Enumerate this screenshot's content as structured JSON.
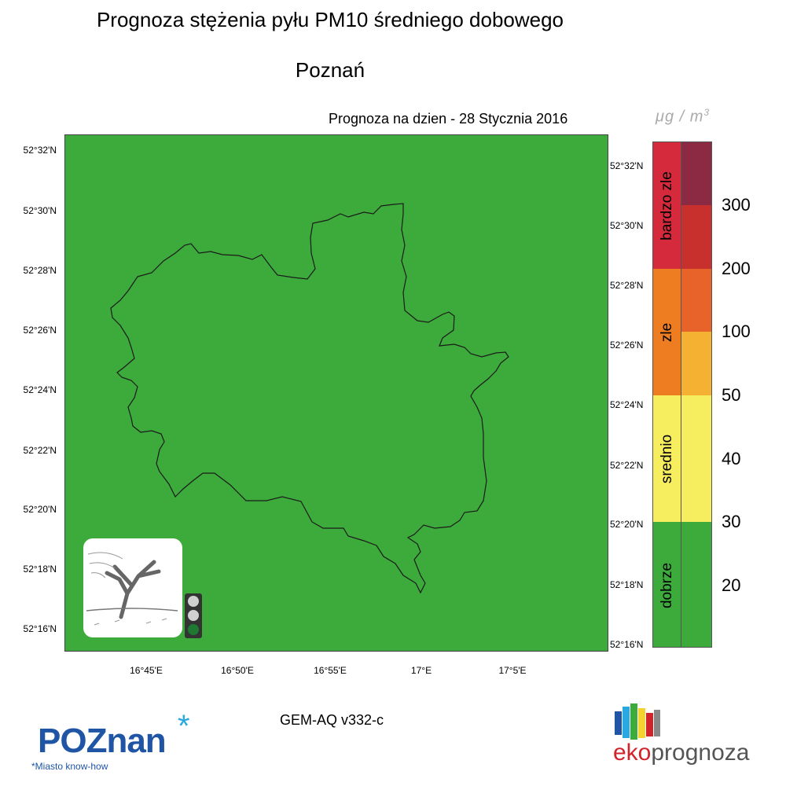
{
  "header": {
    "title": "Prognoza stężenia pyłu PM10 średniego dobowego",
    "city": "Poznań",
    "forecast_date": "Prognoza na dzien -  28 Stycznia 2016"
  },
  "unit": {
    "main": "μg / m",
    "sup": "3"
  },
  "map": {
    "fill_color": "#3dab3b",
    "lat_labels": [
      "52°32'N",
      "52°30'N",
      "52°28'N",
      "52°26'N",
      "52°24'N",
      "52°22'N",
      "52°20'N",
      "52°18'N",
      "52°16'N"
    ],
    "lon_labels": [
      "16°45'E",
      "16°50'E",
      "16°55'E",
      "17°E",
      "17°5'E"
    ],
    "traffic_light_active": "green"
  },
  "legend": {
    "categories": [
      {
        "label": "bardzo zle",
        "color": "#d42a3c"
      },
      {
        "label": "zle",
        "color": "#ee7d22"
      },
      {
        "label": "srednio",
        "color": "#f6ee5e"
      },
      {
        "label": "dobrze",
        "color": "#3dab3b"
      }
    ],
    "scale_colors": [
      "#8b2a42",
      "#c8302e",
      "#e8632a",
      "#f5b132",
      "#f6ee5e",
      "#3dab3b"
    ],
    "scale_values": [
      "300",
      "200",
      "100",
      "50",
      "40",
      "30",
      "20"
    ]
  },
  "footer": {
    "model_version": "GEM-AQ v332-c",
    "poznan_logo": {
      "word": "POZnan",
      "slogan": "*Miasto know-how"
    },
    "eko_logo": {
      "prefix": "eko",
      "suffix": "prognoza"
    }
  }
}
